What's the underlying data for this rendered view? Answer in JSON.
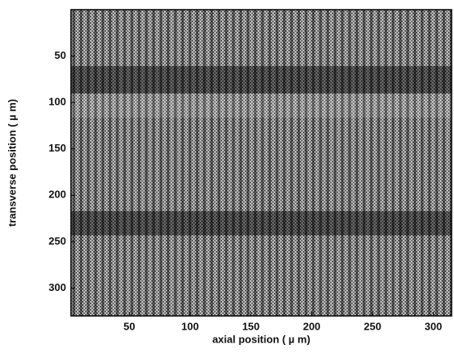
{
  "chart_data": {
    "type": "image",
    "x_label": "axial position ( µ m)",
    "y_label": "transverse position ( µ m)",
    "xlim": [
      2,
      315
    ],
    "xticks": [
      50,
      100,
      150,
      200,
      250,
      300
    ],
    "ylim": [
      0,
      330
    ],
    "yticks": [
      50,
      100,
      150,
      200,
      250,
      300
    ],
    "y_inverted": true
  }
}
